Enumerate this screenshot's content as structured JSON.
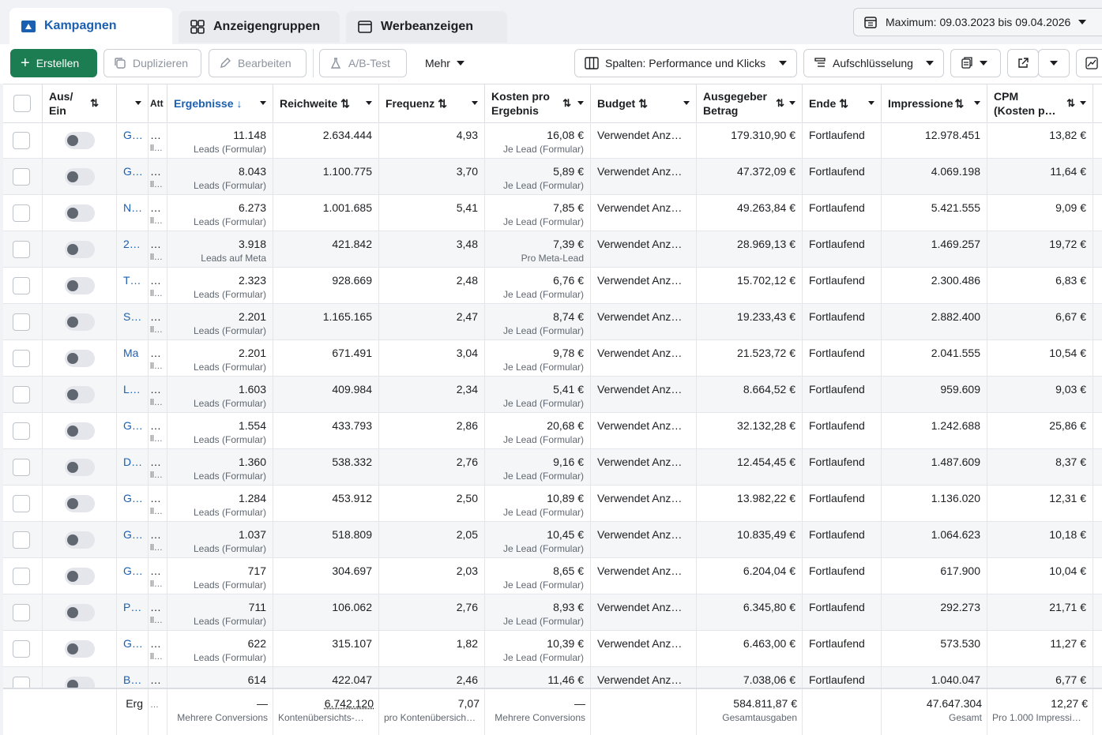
{
  "tabs": [
    {
      "label": "Kampagnen",
      "icon": "folder-icon",
      "active": true
    },
    {
      "label": "Anzeigengruppen",
      "icon": "grid-icon",
      "active": false
    },
    {
      "label": "Werbeanzeigen",
      "icon": "ad-icon",
      "active": false
    }
  ],
  "date_range": "Maximum: 09.03.2023 bis 09.04.2026",
  "toolbar": {
    "create": "Erstellen",
    "duplicate": "Duplizieren",
    "edit": "Bearbeiten",
    "abtest": "A/B-Test",
    "more": "Mehr",
    "columns": "Spalten: Performance und Klicks",
    "breakdown": "Aufschlüsselung"
  },
  "headers": {
    "onoff": "Aus/\nEin",
    "attr": "Att",
    "results": "Ergebnisse",
    "reach": "Reichweite",
    "frequency": "Frequenz",
    "cost": "Kosten pro\nErgebnis",
    "budget": "Budget",
    "spent": "Ausgegeber\nBetrag",
    "end": "Ende",
    "impressions": "Impressione",
    "cpm": "CPM\n(Kosten p…"
  },
  "rows": [
    {
      "name": "G…",
      "results": "11.148",
      "results_sub": "Leads (Formular)",
      "reach": "2.634.444",
      "freq": "4,93",
      "cost": "16,08 €",
      "cost_sub": "Je Lead (Formular)",
      "budget": "Verwendet Anz…",
      "spent": "179.310,90 €",
      "end": "Fortlaufend",
      "impr": "12.978.451",
      "cpm": "13,82 €"
    },
    {
      "name": "G…",
      "results": "8.043",
      "results_sub": "Leads (Formular)",
      "reach": "1.100.775",
      "freq": "3,70",
      "cost": "5,89 €",
      "cost_sub": "Je Lead (Formular)",
      "budget": "Verwendet Anz…",
      "spent": "47.372,09 €",
      "end": "Fortlaufend",
      "impr": "4.069.198",
      "cpm": "11,64 €"
    },
    {
      "name": "N…",
      "results": "6.273",
      "results_sub": "Leads (Formular)",
      "reach": "1.001.685",
      "freq": "5,41",
      "cost": "7,85 €",
      "cost_sub": "Je Lead (Formular)",
      "budget": "Verwendet Anz…",
      "spent": "49.263,84 €",
      "end": "Fortlaufend",
      "impr": "5.421.555",
      "cpm": "9,09 €"
    },
    {
      "name": "2…",
      "results": "3.918",
      "results_sub": "Leads auf Meta",
      "reach": "421.842",
      "freq": "3,48",
      "cost": "7,39 €",
      "cost_sub": "Pro Meta-Lead",
      "budget": "Verwendet Anz…",
      "spent": "28.969,13 €",
      "end": "Fortlaufend",
      "impr": "1.469.257",
      "cpm": "19,72 €"
    },
    {
      "name": "T…",
      "results": "2.323",
      "results_sub": "Leads (Formular)",
      "reach": "928.669",
      "freq": "2,48",
      "cost": "6,76 €",
      "cost_sub": "Je Lead (Formular)",
      "budget": "Verwendet Anz…",
      "spent": "15.702,12 €",
      "end": "Fortlaufend",
      "impr": "2.300.486",
      "cpm": "6,83 €"
    },
    {
      "name": "S…",
      "results": "2.201",
      "results_sub": "Leads (Formular)",
      "reach": "1.165.165",
      "freq": "2,47",
      "cost": "8,74 €",
      "cost_sub": "Je Lead (Formular)",
      "budget": "Verwendet Anz…",
      "spent": "19.233,43 €",
      "end": "Fortlaufend",
      "impr": "2.882.400",
      "cpm": "6,67 €"
    },
    {
      "name": "Ma",
      "results": "2.201",
      "results_sub": "Leads (Formular)",
      "reach": "671.491",
      "freq": "3,04",
      "cost": "9,78 €",
      "cost_sub": "Je Lead (Formular)",
      "budget": "Verwendet Anz…",
      "spent": "21.523,72 €",
      "end": "Fortlaufend",
      "impr": "2.041.555",
      "cpm": "10,54 €"
    },
    {
      "name": "L…",
      "results": "1.603",
      "results_sub": "Leads (Formular)",
      "reach": "409.984",
      "freq": "2,34",
      "cost": "5,41 €",
      "cost_sub": "Je Lead (Formular)",
      "budget": "Verwendet Anz…",
      "spent": "8.664,52 €",
      "end": "Fortlaufend",
      "impr": "959.609",
      "cpm": "9,03 €"
    },
    {
      "name": "G…",
      "results": "1.554",
      "results_sub": "Leads (Formular)",
      "reach": "433.793",
      "freq": "2,86",
      "cost": "20,68 €",
      "cost_sub": "Je Lead (Formular)",
      "budget": "Verwendet Anz…",
      "spent": "32.132,28 €",
      "end": "Fortlaufend",
      "impr": "1.242.688",
      "cpm": "25,86 €"
    },
    {
      "name": "D…",
      "results": "1.360",
      "results_sub": "Leads (Formular)",
      "reach": "538.332",
      "freq": "2,76",
      "cost": "9,16 €",
      "cost_sub": "Je Lead (Formular)",
      "budget": "Verwendet Anz…",
      "spent": "12.454,45 €",
      "end": "Fortlaufend",
      "impr": "1.487.609",
      "cpm": "8,37 €"
    },
    {
      "name": "G…",
      "results": "1.284",
      "results_sub": "Leads (Formular)",
      "reach": "453.912",
      "freq": "2,50",
      "cost": "10,89 €",
      "cost_sub": "Je Lead (Formular)",
      "budget": "Verwendet Anz…",
      "spent": "13.982,22 €",
      "end": "Fortlaufend",
      "impr": "1.136.020",
      "cpm": "12,31 €"
    },
    {
      "name": "G…",
      "results": "1.037",
      "results_sub": "Leads (Formular)",
      "reach": "518.809",
      "freq": "2,05",
      "cost": "10,45 €",
      "cost_sub": "Je Lead (Formular)",
      "budget": "Verwendet Anz…",
      "spent": "10.835,49 €",
      "end": "Fortlaufend",
      "impr": "1.064.623",
      "cpm": "10,18 €"
    },
    {
      "name": "G…",
      "results": "717",
      "results_sub": "Leads (Formular)",
      "reach": "304.697",
      "freq": "2,03",
      "cost": "8,65 €",
      "cost_sub": "Je Lead (Formular)",
      "budget": "Verwendet Anz…",
      "spent": "6.204,04 €",
      "end": "Fortlaufend",
      "impr": "617.900",
      "cpm": "10,04 €"
    },
    {
      "name": "P…",
      "results": "711",
      "results_sub": "Leads (Formular)",
      "reach": "106.062",
      "freq": "2,76",
      "cost": "8,93 €",
      "cost_sub": "Je Lead (Formular)",
      "budget": "Verwendet Anz…",
      "spent": "6.345,80 €",
      "end": "Fortlaufend",
      "impr": "292.273",
      "cpm": "21,71 €"
    },
    {
      "name": "G…",
      "results": "622",
      "results_sub": "Leads (Formular)",
      "reach": "315.107",
      "freq": "1,82",
      "cost": "10,39 €",
      "cost_sub": "Je Lead (Formular)",
      "budget": "Verwendet Anz…",
      "spent": "6.463,00 €",
      "end": "Fortlaufend",
      "impr": "573.530",
      "cpm": "11,27 €"
    },
    {
      "name": "B…",
      "results": "614",
      "results_sub": "",
      "reach": "422.047",
      "freq": "2,46",
      "cost": "11,46 €",
      "cost_sub": "",
      "budget": "Verwendet Anz…",
      "spent": "7.038,06 €",
      "end": "Fortlaufend",
      "impr": "1.040.047",
      "cpm": "6,77 €"
    }
  ],
  "totals": {
    "label": "Erg",
    "results": "—",
    "results_sub": "Mehrere Conversions",
    "reach": "6.742.120",
    "reach_sub": "Kontenübersichts-…",
    "freq": "7,07",
    "freq_sub": "pro Kontenübersich…",
    "cost": "—",
    "cost_sub": "Mehrere Conversions",
    "spent": "584.811,87 €",
    "spent_sub": "Gesamtausgaben",
    "impr": "47.647.304",
    "impr_sub": "Gesamt",
    "cpm": "12,27 €",
    "cpm_sub": "Pro 1.000 Impressi…"
  }
}
